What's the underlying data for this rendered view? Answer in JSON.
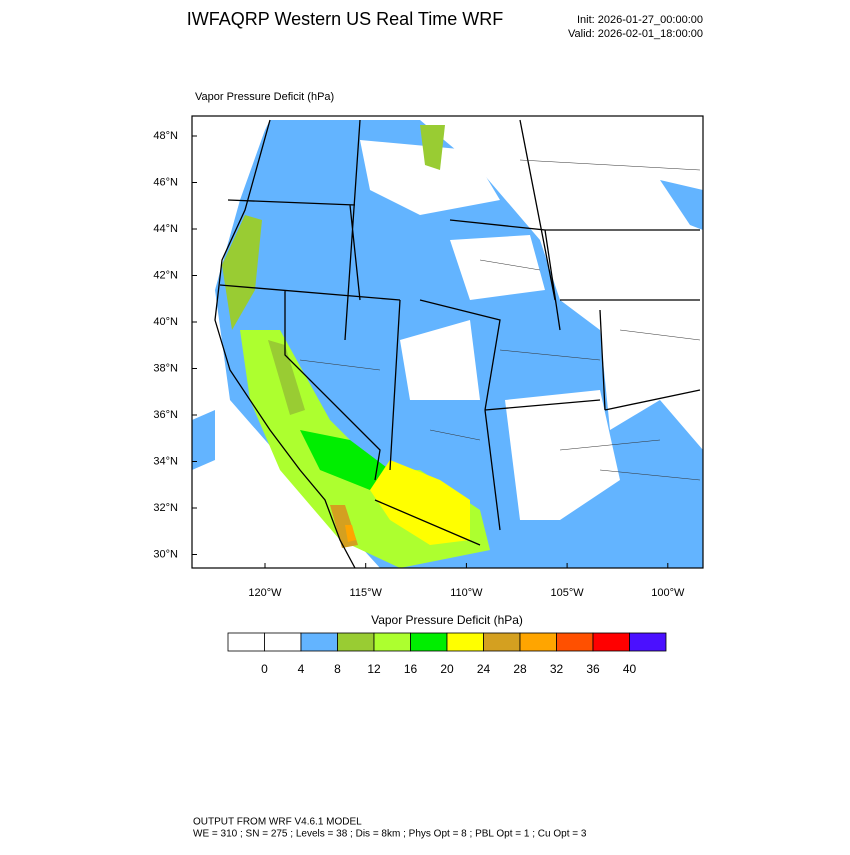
{
  "header": {
    "title": "IWFAQRP Western US Real Time WRF",
    "init": "Init: 2026-01-27_00:00:00",
    "valid": "Valid: 2026-02-01_18:00:00"
  },
  "map": {
    "title": "Vapor Pressure Deficit   (hPa)",
    "lat_labels": [
      "48°N",
      "46°N",
      "44°N",
      "42°N",
      "40°N",
      "38°N",
      "36°N",
      "34°N",
      "32°N",
      "30°N"
    ],
    "lon_labels": [
      "120°W",
      "115°W",
      "110°W",
      "105°W",
      "100°W"
    ]
  },
  "colorbar": {
    "title": "Vapor Pressure Deficit  (hPa)",
    "colors": [
      "#ffffff",
      "#ffffff",
      "#63b4ff",
      "#99cc33",
      "#adff2f",
      "#00ee00",
      "#ffff00",
      "#d4a020",
      "#ffa500",
      "#ff5000",
      "#ff0000",
      "#4b10ff"
    ],
    "labels": [
      0,
      4,
      8,
      12,
      16,
      20,
      24,
      28,
      32,
      36,
      40
    ]
  },
  "footer": {
    "line1": "OUTPUT FROM WRF V4.6.1 MODEL",
    "line2": "WE = 310 ; SN = 275 ; Levels = 38 ; Dis = 8km ; Phys Opt = 8 ; PBL Opt = 1 ; Cu Opt = 3"
  }
}
